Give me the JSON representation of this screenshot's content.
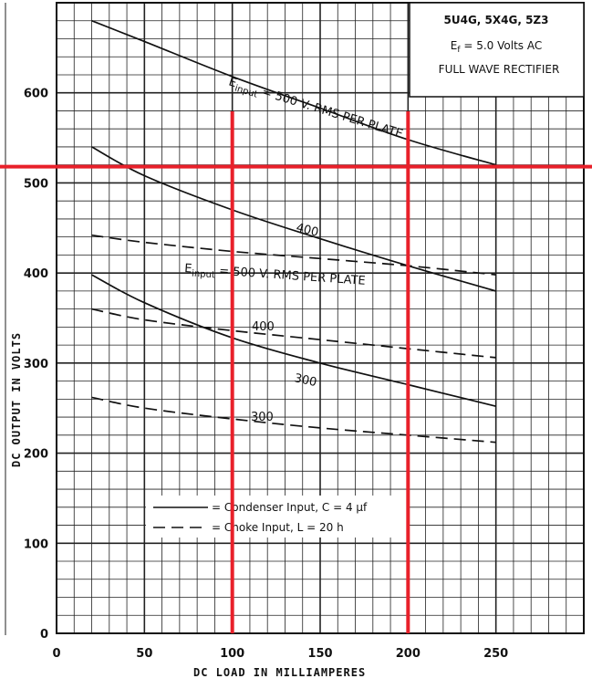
{
  "chart_data": {
    "type": "line",
    "title_box": {
      "tubes": "5U4G, 5X4G, 5Z3",
      "filament_prefix": "E",
      "filament_sub": "f",
      "filament_rest": " = 5.0 Volts AC",
      "mode": "FULL WAVE RECTIFIER"
    },
    "xlabel": "DC LOAD IN MILLIAMPERES",
    "ylabel": "DC OUTPUT IN VOLTS",
    "xlim": [
      0,
      300
    ],
    "ylim": [
      0,
      700
    ],
    "x_ticks": [
      0,
      50,
      100,
      150,
      200,
      250
    ],
    "y_ticks": [
      0,
      100,
      200,
      300,
      400,
      500,
      600
    ],
    "grid": true,
    "series": [
      {
        "name": "condenser-500",
        "style": "solid",
        "x": [
          20,
          50,
          100,
          150,
          200,
          250
        ],
        "y": [
          680,
          657,
          618,
          583,
          548,
          520
        ]
      },
      {
        "name": "condenser-400",
        "style": "solid",
        "x": [
          20,
          50,
          100,
          150,
          200,
          250
        ],
        "y": [
          540,
          508,
          470,
          438,
          408,
          380
        ]
      },
      {
        "name": "condenser-300",
        "style": "solid",
        "x": [
          20,
          50,
          100,
          150,
          200,
          250
        ],
        "y": [
          398,
          367,
          328,
          300,
          276,
          252
        ]
      },
      {
        "name": "choke-500",
        "style": "dashed",
        "x": [
          20,
          50,
          100,
          150,
          200,
          250
        ],
        "y": [
          442,
          434,
          424,
          416,
          408,
          398
        ]
      },
      {
        "name": "choke-400",
        "style": "dashed",
        "x": [
          20,
          50,
          100,
          150,
          200,
          250
        ],
        "y": [
          360,
          348,
          336,
          326,
          316,
          306
        ]
      },
      {
        "name": "choke-300",
        "style": "dashed",
        "x": [
          20,
          50,
          100,
          150,
          200,
          250
        ],
        "y": [
          262,
          250,
          238,
          228,
          220,
          212
        ]
      }
    ],
    "curve_labels": {
      "condenser_500": "E",
      "condenser_500_sub": "input",
      "condenser_500_rest": " = 500 V. RMS PER PLATE",
      "condenser_400": "400",
      "condenser_300": "300",
      "choke_500": "E",
      "choke_500_sub": "input",
      "choke_500_rest": " = 500 V. RMS PER PLATE",
      "choke_400": "400",
      "choke_300": "300"
    },
    "legend": {
      "position": "bottom-center",
      "condenser": "= Condenser Input, C = 4 µf",
      "choke": "= Choke Input, L = 20 h"
    },
    "reference_lines": {
      "color": "#e8202a",
      "x_values": [
        100,
        200
      ],
      "y_values": [
        518
      ]
    }
  }
}
